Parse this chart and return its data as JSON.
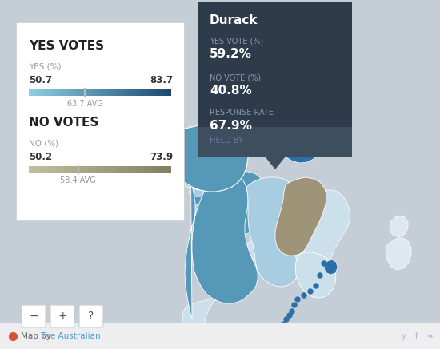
{
  "bg_color": "#c5cdd6",
  "footer_color": "#eeeef0",
  "white_panel": "#ffffff",
  "dark_panel": "#2d3b4a",
  "darker_footer": "#3d4e5f",
  "yes_votes_title": "YES VOTES",
  "yes_pct_label": "YES (%)",
  "yes_min": 50.7,
  "yes_max": 83.7,
  "yes_avg": 63.7,
  "yes_avg_label": "63.7 AVG",
  "yes_bar_left_color": "#8ecfdf",
  "yes_bar_right_color": "#1a4870",
  "no_votes_title": "NO VOTES",
  "no_pct_label": "NO (%)",
  "no_min": 50.2,
  "no_max": 73.9,
  "no_avg": 58.4,
  "no_avg_label": "58.4 AVG",
  "no_bar_left_color": "#c0c0a0",
  "no_bar_right_color": "#808060",
  "tooltip_title": "Durack",
  "tooltip_yes_label": "YES VOTE (%)",
  "tooltip_yes_value": "59.2%",
  "tooltip_no_label": "NO VOTE (%)",
  "tooltip_no_value": "40.8%",
  "tooltip_response_label": "RESPONSE RATE",
  "tooltip_response_value": "67.9%",
  "tooltip_held_label": "HELD BY",
  "footer_text_left": "Map by ",
  "footer_link_text": "The Australian",
  "footer_link_color": "#4a9fd4",
  "footer_icon_color": "#d9503a",
  "map_light_blue": "#a8cce0",
  "map_medium_blue": "#5598b8",
  "map_dark_blue": "#2a6fa8",
  "map_tan": "#9e9478",
  "map_tan_light": "#b8aa8a",
  "map_very_light_blue": "#cce0ec",
  "map_bg": "#c5cdd6",
  "map_white_gray": "#dde5ec",
  "nz_color": "#dde8f0"
}
